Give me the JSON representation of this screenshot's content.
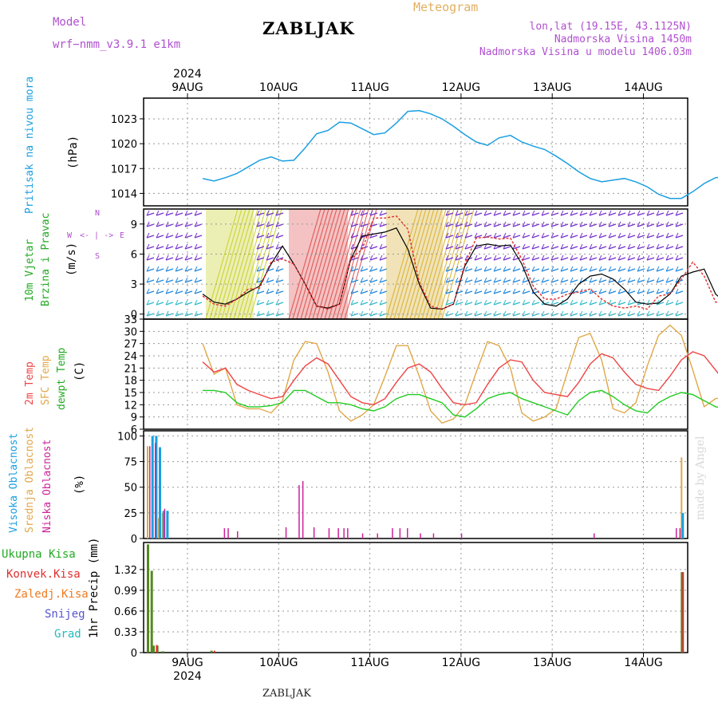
{
  "header": {
    "model_label": "Model",
    "model_name": "wrf−nmm_v3.9.1 e1km",
    "station": "ZABLJAK",
    "app_title": "Meteogram",
    "coords": "lon,lat (19.15E, 43.1125N)",
    "altitude": "Nadmorska Visina 1450m",
    "model_altitude": "Nadmorska Visina u modelu 1406.03m"
  },
  "footer": {
    "station": "ZABLJAK"
  },
  "credit": "made by Angel",
  "colors": {
    "pressure": "#1a9fe0",
    "wind_speed": "#000000",
    "gust": "#e03030",
    "temp2m": "#ee4444",
    "sfc_temp": "#e0a84a",
    "dewpt": "#22cc22",
    "high_cloud": "#1aa0e0",
    "mid_cloud": "#e0a84a",
    "low_cloud": "#cc2299",
    "total_precip": "#22aa22",
    "conv_precip": "#e03030",
    "frozen_precip": "#f07a20",
    "snow": "#5555cc",
    "hail": "#22bbbb",
    "label_purple": "#b050d0"
  },
  "axis_labels": {
    "pressure": [
      "Pritisak na nivou mora",
      "(hPa)"
    ],
    "wind": [
      "10m Vjetar",
      "Brzina i Pravac",
      "(m/s)"
    ],
    "compass": {
      "n": "N",
      "s": "S",
      "w": "W",
      "e": "E",
      "axis": "<- | ->"
    },
    "temp": [
      "2m Temp",
      "SFC Temp",
      "dewpt Temp",
      "(C)"
    ],
    "cloud": [
      "Visoka Oblacnost",
      "Srednja Oblacnost",
      "Niska Oblacnost",
      "(%)"
    ],
    "precip": [
      "Ukupna Kisa",
      "Konvek.Kisa",
      "Zaledj.Kisa",
      "Snijeg",
      "Grad"
    ],
    "precip_unit": "1hr Precip (mm)"
  },
  "chart_data": {
    "type": "line",
    "year": "2024",
    "day_labels": [
      "9AUG",
      "10AUG",
      "11AUG",
      "12AUG",
      "13AUG",
      "14AUG"
    ],
    "x_start": "2024-08-08 14:00",
    "time_step_hours": 3,
    "pressure": {
      "ylabel": "hPa",
      "ylim": [
        1012.5,
        1025.5
      ],
      "ticks": [
        1014,
        1017,
        1020,
        1023
      ],
      "values": [
        1015.8,
        1015.5,
        1015.9,
        1016.4,
        1017.2,
        1018.0,
        1018.4,
        1017.9,
        1018.0,
        1019.5,
        1021.2,
        1021.6,
        1022.6,
        1022.5,
        1021.8,
        1021.1,
        1021.3,
        1022.5,
        1023.9,
        1024.0,
        1023.6,
        1023.0,
        1022.1,
        1021.1,
        1020.2,
        1019.8,
        1020.7,
        1021.0,
        1020.2,
        1019.7,
        1019.3,
        1018.5,
        1017.6,
        1016.6,
        1015.8,
        1015.4,
        1015.6,
        1015.8,
        1015.4,
        1014.8,
        1013.9,
        1013.4,
        1013.4,
        1014.2,
        1015.2,
        1015.9,
        1016.0,
        1016.2,
        1015.3,
        1014.8,
        1015.2
      ]
    },
    "wind": {
      "ylabel": "m/s",
      "ylim": [
        -0.5,
        10.5
      ],
      "ticks": [
        0,
        3,
        6,
        9
      ],
      "speed": [
        2.0,
        1.2,
        1.0,
        1.5,
        2.2,
        2.8,
        5.0,
        6.8,
        5.0,
        3.0,
        0.8,
        0.6,
        1.0,
        5.5,
        7.8,
        8.0,
        8.2,
        8.6,
        6.5,
        3.0,
        0.6,
        0.5,
        1.0,
        4.8,
        6.8,
        7.0,
        6.8,
        6.9,
        5.0,
        2.2,
        1.0,
        0.8,
        1.5,
        3.0,
        3.8,
        4.0,
        3.5,
        2.5,
        1.2,
        1.0,
        1.1,
        2.0,
        3.8,
        4.2,
        4.5,
        2.0,
        1.0,
        1.3,
        2.8,
        3.2,
        1.0
      ],
      "gust": [
        1.8,
        1.0,
        0.8,
        1.5,
        2.5,
        2.6,
        5.2,
        5.5,
        5.0,
        3.0,
        0.8,
        0.5,
        1.0,
        5.5,
        6.5,
        9.6,
        9.6,
        9.8,
        8.5,
        3.2,
        0.8,
        0.5,
        1.0,
        5.0,
        7.6,
        7.7,
        7.5,
        7.6,
        5.5,
        2.8,
        1.5,
        1.5,
        2.0,
        2.2,
        2.5,
        1.5,
        0.8,
        0.6,
        0.8,
        0.5,
        1.8,
        2.0,
        3.5,
        5.2,
        3.8,
        1.2,
        1.2,
        1.0,
        1.3,
        1.3,
        1.0
      ]
    },
    "temperature": {
      "ylabel": "C",
      "ylim": [
        6,
        33
      ],
      "ticks": [
        6,
        9,
        12,
        15,
        18,
        21,
        24,
        27,
        30,
        33
      ],
      "temp2m": [
        22.5,
        20.0,
        21.0,
        17.0,
        15.5,
        14.5,
        13.5,
        14.0,
        18.0,
        21.5,
        23.5,
        22.0,
        18.0,
        14.0,
        12.5,
        12.0,
        13.5,
        17.5,
        21.0,
        22.0,
        20.0,
        16.0,
        12.5,
        12.0,
        12.5,
        17.0,
        21.0,
        23.0,
        22.5,
        18.0,
        15.0,
        14.5,
        14.0,
        17.5,
        22.0,
        24.5,
        23.5,
        20.0,
        17.0,
        16.0,
        15.5,
        19.0,
        23.0,
        25.0,
        24.0,
        20.5,
        17.0,
        16.5,
        18.0,
        24.0,
        24.5
      ],
      "sfc": [
        27.0,
        19.5,
        21.0,
        12.0,
        11.0,
        11.0,
        10.0,
        13.0,
        23.0,
        27.5,
        27.0,
        20.0,
        10.5,
        8.0,
        9.5,
        12.0,
        19.0,
        26.5,
        26.5,
        19.0,
        10.5,
        7.5,
        8.5,
        12.0,
        20.0,
        27.5,
        26.5,
        21.0,
        10.0,
        8.0,
        9.0,
        11.0,
        20.0,
        28.5,
        29.5,
        23.0,
        11.0,
        10.0,
        12.5,
        21.5,
        29.0,
        31.5,
        29.0,
        20.5,
        11.5,
        13.5,
        14.0,
        26.0,
        31.5,
        24.5,
        28.0
      ],
      "dewpt": [
        15.5,
        15.5,
        15.0,
        12.5,
        11.5,
        11.5,
        11.8,
        12.5,
        15.5,
        15.5,
        14.0,
        12.5,
        12.5,
        12.0,
        11.0,
        10.5,
        11.5,
        13.5,
        14.5,
        14.5,
        13.5,
        12.5,
        9.5,
        9.0,
        11.0,
        13.5,
        14.5,
        15.0,
        13.5,
        12.5,
        11.5,
        10.5,
        9.5,
        13.0,
        15.0,
        15.5,
        14.0,
        12.0,
        10.5,
        10.0,
        12.5,
        14.0,
        15.0,
        14.5,
        13.0,
        11.5,
        11.0,
        13.5,
        16.5,
        17.0,
        16.0
      ]
    },
    "cloud": {
      "ylabel": "%",
      "ylim": [
        0,
        105
      ],
      "ticks": [
        0,
        25,
        50,
        75,
        100
      ],
      "high": [
        {
          "t": 2,
          "v": 100
        },
        {
          "t": 4,
          "v": 100
        },
        {
          "t": 6,
          "v": 89
        },
        {
          "t": 8,
          "v": 27
        },
        {
          "t": 10,
          "v": 27
        },
        {
          "t": 286,
          "v": 25
        }
      ],
      "mid": [
        {
          "t": 0,
          "v": 90
        },
        {
          "t": 6,
          "v": 20
        },
        {
          "t": 8,
          "v": 25
        },
        {
          "t": 286,
          "v": 79
        }
      ],
      "low": [
        {
          "t": 0,
          "v": 90
        },
        {
          "t": 3,
          "v": 93
        },
        {
          "t": 8,
          "v": 29
        },
        {
          "t": 40,
          "v": 10
        },
        {
          "t": 42,
          "v": 10
        },
        {
          "t": 47,
          "v": 7
        },
        {
          "t": 73,
          "v": 11
        },
        {
          "t": 80,
          "v": 52
        },
        {
          "t": 82,
          "v": 56
        },
        {
          "t": 88,
          "v": 11
        },
        {
          "t": 96,
          "v": 10
        },
        {
          "t": 101,
          "v": 10
        },
        {
          "t": 104,
          "v": 10
        },
        {
          "t": 106,
          "v": 10
        },
        {
          "t": 114,
          "v": 5
        },
        {
          "t": 122,
          "v": 5
        },
        {
          "t": 130,
          "v": 10
        },
        {
          "t": 134,
          "v": 10
        },
        {
          "t": 138,
          "v": 10
        },
        {
          "t": 145,
          "v": 5
        },
        {
          "t": 152,
          "v": 5
        },
        {
          "t": 167,
          "v": 5
        },
        {
          "t": 238,
          "v": 5
        },
        {
          "t": 282,
          "v": 10
        },
        {
          "t": 284,
          "v": 10
        }
      ]
    },
    "precip": {
      "ylabel": "1hr Precip (mm)",
      "ylim": [
        0,
        1.75
      ],
      "ticks": [
        0,
        0.33,
        0.66,
        0.99,
        1.32
      ],
      "total": [
        {
          "t": 0,
          "v": 1.72
        },
        {
          "t": 2,
          "v": 1.3
        },
        {
          "t": 3,
          "v": 0.11
        },
        {
          "t": 5,
          "v": 0.11
        },
        {
          "t": 8,
          "v": 0.02
        },
        {
          "t": 34,
          "v": 0.03
        },
        {
          "t": 286,
          "v": 1.28
        }
      ],
      "conv": [
        {
          "t": 4,
          "v": 0.12
        },
        {
          "t": 35,
          "v": 0.03
        },
        {
          "t": 286,
          "v": 1.28
        }
      ],
      "frozen": [],
      "snow": [],
      "hail": []
    }
  }
}
